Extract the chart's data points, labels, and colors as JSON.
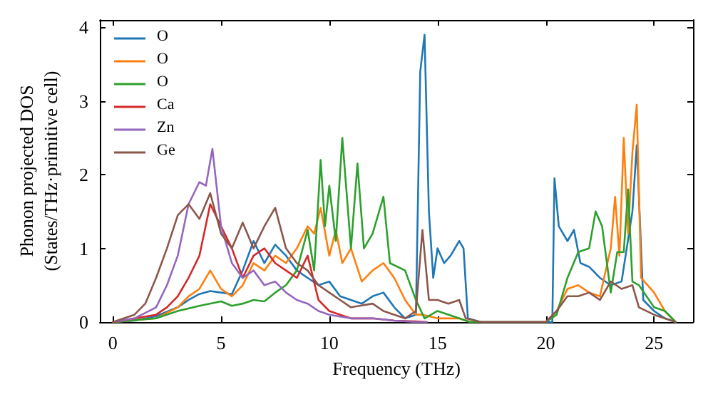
{
  "chart_data": {
    "type": "line",
    "xlabel": "Frequency (THz)",
    "ylabel": "Phonon projected DOS\n(States/THz·primitive cell)",
    "xlim": [
      -0.6,
      26.8
    ],
    "ylim": [
      0,
      4.1
    ],
    "xticks": [
      0,
      5,
      10,
      15,
      20,
      25
    ],
    "yticks": [
      0,
      1,
      2,
      3,
      4
    ],
    "grid": false,
    "legend": "top left",
    "marker": "none",
    "line_style": "solid",
    "series": [
      {
        "name": "O",
        "color": "#1f77b4",
        "x": [
          0,
          1,
          2,
          3,
          3.5,
          4,
          4.5,
          5,
          5.5,
          6,
          6.5,
          7,
          7.5,
          8,
          8.5,
          9,
          9.5,
          10,
          10.5,
          11,
          11.5,
          12,
          12.5,
          13,
          13.5,
          14,
          14.2,
          14.4,
          14.6,
          14.8,
          15,
          15.3,
          15.6,
          16,
          16.2,
          16.4,
          17,
          20,
          20.3,
          20.4,
          20.6,
          21,
          21.3,
          21.6,
          22,
          22.5,
          23,
          23.5,
          24,
          24.2,
          24.5,
          25,
          25.5,
          26
        ],
        "values": [
          0,
          0.02,
          0.08,
          0.2,
          0.3,
          0.38,
          0.42,
          0.4,
          0.38,
          0.7,
          1.1,
          0.8,
          1.05,
          0.9,
          0.7,
          0.6,
          0.5,
          0.55,
          0.35,
          0.3,
          0.25,
          0.35,
          0.4,
          0.2,
          0.05,
          0.1,
          3.4,
          3.9,
          1.5,
          0.6,
          1.0,
          0.8,
          0.9,
          1.1,
          1.0,
          0.05,
          0,
          0,
          0,
          1.95,
          1.3,
          1.1,
          1.25,
          0.8,
          0.75,
          0.6,
          0.5,
          0.55,
          1.5,
          2.4,
          0.3,
          0.15,
          0.05,
          0
        ]
      },
      {
        "name": "O",
        "color": "#ff7f0e",
        "x": [
          0,
          2,
          3,
          3.5,
          4,
          4.5,
          5,
          5.5,
          6,
          6.5,
          7,
          7.5,
          8,
          8.5,
          9,
          9.3,
          9.6,
          10,
          10.3,
          10.6,
          11,
          11.5,
          12,
          12.5,
          13,
          13.5,
          14,
          14.3,
          15,
          16,
          16.5,
          20,
          20.5,
          21,
          21.5,
          22,
          22.5,
          23,
          23.2,
          23.4,
          23.6,
          23.8,
          24,
          24.2,
          24.4,
          25,
          25.5,
          26
        ],
        "values": [
          0,
          0.05,
          0.2,
          0.35,
          0.45,
          0.7,
          0.45,
          0.35,
          0.5,
          0.8,
          0.7,
          0.9,
          0.8,
          1.0,
          1.3,
          1.2,
          1.55,
          0.9,
          1.25,
          0.8,
          1.0,
          0.55,
          0.7,
          0.8,
          0.6,
          0.3,
          0.1,
          0.1,
          0.05,
          0.05,
          0,
          0,
          0.15,
          0.45,
          0.5,
          0.4,
          0.35,
          1.0,
          1.7,
          0.9,
          2.5,
          1.2,
          2.3,
          2.95,
          0.6,
          0.4,
          0.15,
          0
        ]
      },
      {
        "name": "O",
        "color": "#2ca02c",
        "x": [
          0,
          2,
          3,
          4,
          5,
          5.5,
          6,
          6.5,
          7,
          7.5,
          8,
          8.5,
          9,
          9.3,
          9.6,
          9.8,
          10,
          10.3,
          10.6,
          11,
          11.3,
          11.6,
          12,
          12.5,
          12.8,
          13.5,
          14,
          14.4,
          15,
          16,
          16.5,
          20,
          20.5,
          21,
          21.5,
          22,
          22.3,
          22.6,
          23,
          23.3,
          23.6,
          23.8,
          24,
          24.3,
          25,
          25.5,
          26
        ],
        "values": [
          0,
          0.05,
          0.15,
          0.22,
          0.28,
          0.22,
          0.25,
          0.3,
          0.28,
          0.4,
          0.5,
          0.7,
          1.25,
          0.7,
          2.2,
          1.3,
          1.85,
          1.1,
          2.5,
          1.0,
          2.15,
          1.0,
          1.2,
          1.7,
          0.8,
          0.7,
          0.3,
          0.05,
          0.15,
          0.05,
          0,
          0,
          0.1,
          0.6,
          0.95,
          1.0,
          1.5,
          1.3,
          0.4,
          0.95,
          0.95,
          1.8,
          0.55,
          0.5,
          0.2,
          0.15,
          0
        ]
      },
      {
        "name": "Ca",
        "color": "#d62728",
        "x": [
          0,
          2,
          2.5,
          3,
          3.5,
          4,
          4.5,
          5,
          5.5,
          6,
          6.5,
          7,
          7.5,
          8,
          8.5,
          9,
          9.5,
          10,
          10.5,
          11,
          12,
          13,
          14,
          14.5
        ],
        "values": [
          0,
          0.1,
          0.2,
          0.35,
          0.6,
          0.9,
          1.6,
          1.3,
          1.0,
          0.6,
          0.9,
          1.0,
          0.8,
          0.7,
          0.6,
          0.9,
          0.3,
          0.15,
          0.1,
          0.05,
          0.05,
          0.02,
          0.01,
          0
        ]
      },
      {
        "name": "Zn",
        "color": "#9467bd",
        "x": [
          0,
          1,
          2,
          2.5,
          3,
          3.5,
          4,
          4.3,
          4.6,
          5,
          5.5,
          6,
          6.5,
          7,
          7.5,
          8,
          8.5,
          9,
          9.5,
          10,
          11,
          12,
          13,
          14,
          14.5
        ],
        "values": [
          0,
          0.05,
          0.2,
          0.5,
          0.9,
          1.6,
          1.9,
          1.85,
          2.35,
          1.3,
          0.8,
          0.6,
          0.7,
          0.5,
          0.55,
          0.4,
          0.3,
          0.25,
          0.15,
          0.1,
          0.05,
          0.05,
          0.02,
          0,
          0
        ]
      },
      {
        "name": "Ge",
        "color": "#8c564b",
        "x": [
          0,
          1,
          1.5,
          2,
          2.5,
          3,
          3.5,
          4,
          4.5,
          5,
          5.5,
          6,
          6.5,
          7,
          7.5,
          8,
          8.5,
          9,
          9.5,
          10,
          10.5,
          11,
          12,
          12.5,
          13,
          13.5,
          14,
          14.3,
          14.6,
          15,
          15.5,
          16,
          16.3,
          17,
          20,
          20.5,
          21,
          21.5,
          22,
          22.5,
          23,
          23.5,
          24,
          24.3,
          25,
          26
        ],
        "values": [
          0,
          0.1,
          0.25,
          0.6,
          1.0,
          1.45,
          1.6,
          1.4,
          1.75,
          1.2,
          1.0,
          1.35,
          1.0,
          1.3,
          1.55,
          1.0,
          0.8,
          0.7,
          0.5,
          0.4,
          0.3,
          0.2,
          0.25,
          0.15,
          0.1,
          0.05,
          0.15,
          1.25,
          0.3,
          0.3,
          0.25,
          0.3,
          0.05,
          0,
          0,
          0.15,
          0.35,
          0.35,
          0.4,
          0.3,
          0.55,
          0.45,
          0.5,
          0.2,
          0.1,
          0
        ]
      }
    ]
  }
}
